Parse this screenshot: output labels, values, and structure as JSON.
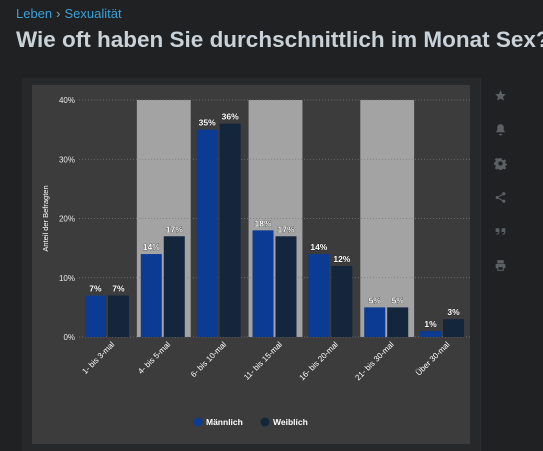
{
  "breadcrumb": {
    "items": [
      "Leben",
      "Sexualität"
    ],
    "separator": "›"
  },
  "page_title": "Wie oft haben Sie durchschnittlich im Monat Sex?",
  "toolbar": {
    "icons": [
      "star-icon",
      "bell-icon",
      "gear-icon",
      "share-icon",
      "quote-icon",
      "print-icon"
    ]
  },
  "colors": {
    "page_bg": "#1f2122",
    "link": "#3aa0d9",
    "title": "#c9d2d8",
    "plot_bg": "#3c3c3c",
    "band": "#a3a3a3",
    "male": "#0b3b93",
    "female": "#14263c"
  },
  "chart_data": {
    "type": "bar",
    "ylabel": "Anteil der Befragten",
    "ylim": [
      0,
      40
    ],
    "yticks": [
      "0%",
      "10%",
      "20%",
      "30%",
      "40%"
    ],
    "grid": true,
    "legend_position": "bottom",
    "categories": [
      "1- bis 3-mal",
      "4- bis 5-mal",
      "6- bis 10-mal",
      "11- bis 15-mal",
      "16- bis 20-mal",
      "21- bis 30-mal",
      "Über 30-mal"
    ],
    "series": [
      {
        "name": "Männlich",
        "values": [
          7,
          14,
          35,
          18,
          14,
          5,
          1
        ],
        "labels": [
          "7%",
          "14%",
          "35%",
          "18%",
          "14%",
          "5%",
          "1%"
        ]
      },
      {
        "name": "Weiblich",
        "values": [
          7,
          17,
          36,
          17,
          12,
          5,
          3
        ],
        "labels": [
          "7%",
          "17%",
          "36%",
          "17%",
          "12%",
          "5%",
          "3%"
        ]
      }
    ]
  }
}
